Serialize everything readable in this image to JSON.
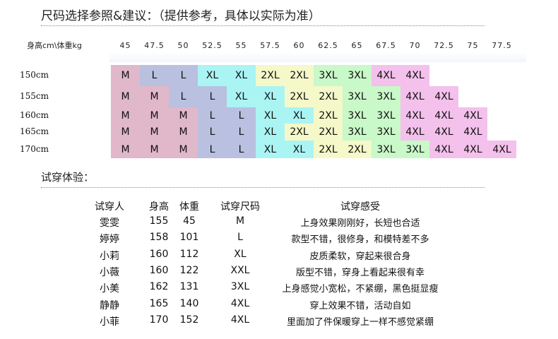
{
  "title": "尺码选择参照&建议：（提供参考，具体以实际为准）",
  "size_chart": {
    "corner_label": "身高cm\\体重kg",
    "weights": [
      "45",
      "47.5",
      "50",
      "52.5",
      "55",
      "57.5",
      "60",
      "62.5",
      "65",
      "67.5",
      "70",
      "72.5",
      "75",
      "77.5"
    ],
    "heights": [
      "150cm",
      "155cm",
      "160cm",
      "165cm",
      "170cm"
    ],
    "rows": [
      [
        "M",
        "L",
        "L",
        "XL",
        "XL",
        "2XL",
        "2XL",
        "3XL",
        "3XL",
        "4XL",
        "4XL"
      ],
      [
        "M",
        "M",
        "L",
        "L",
        "XL",
        "XL",
        "2XL",
        "2XL",
        "3XL",
        "3XL",
        "4XL",
        "4XL"
      ],
      [
        "M",
        "M",
        "M",
        "L",
        "L",
        "XL",
        "XL",
        "2XL",
        "3XL",
        "3XL",
        "4XL",
        "4XL",
        "4XL"
      ],
      [
        "M",
        "M",
        "M",
        "L",
        "L",
        "XL",
        "2XL",
        "2XL",
        "3XL",
        "3XL",
        "4XL",
        "4XL",
        "4XL"
      ],
      [
        "M",
        "M",
        "M",
        "L",
        "L",
        "XL",
        "XL",
        "2XL",
        "2XL",
        "3XL",
        "3XL",
        "4XL",
        "4XL",
        "4XL"
      ]
    ],
    "size_colors": {
      "M": "#e0b8c9",
      "L": "#b9c0e0",
      "XL": "#aaf4f4",
      "2XL": "#f5f8c9",
      "3XL": "#c9f8c9",
      "4XL": "#f4c0ec"
    }
  },
  "trial_section": {
    "heading": "试穿体验：",
    "headers": [
      "试穿人",
      "身高",
      "体重",
      "试穿尺码",
      "试穿感受"
    ],
    "rows": [
      [
        "雯雯",
        "155",
        "45",
        "M",
        "上身效果刚刚好，长短也合适"
      ],
      [
        "婷婷",
        "158",
        "101",
        "L",
        "款型不错，很修身，和模特差不多"
      ],
      [
        "小莉",
        "160",
        "112",
        "XL",
        "皮质柔软，穿起来很合身"
      ],
      [
        "小薇",
        "160",
        "122",
        "XXL",
        "版型不错，穿身上看起来很有幸"
      ],
      [
        "小美",
        "162",
        "131",
        "3XL",
        "上身感觉小宽松，不紧绷，黑色挺显瘦"
      ],
      [
        "静静",
        "165",
        "140",
        "4XL",
        "穿上效果不错，活动自如"
      ],
      [
        "小菲",
        "170",
        "152",
        "4XL",
        "里面加了件保暖穿上一样不感觉紧绷"
      ]
    ]
  }
}
